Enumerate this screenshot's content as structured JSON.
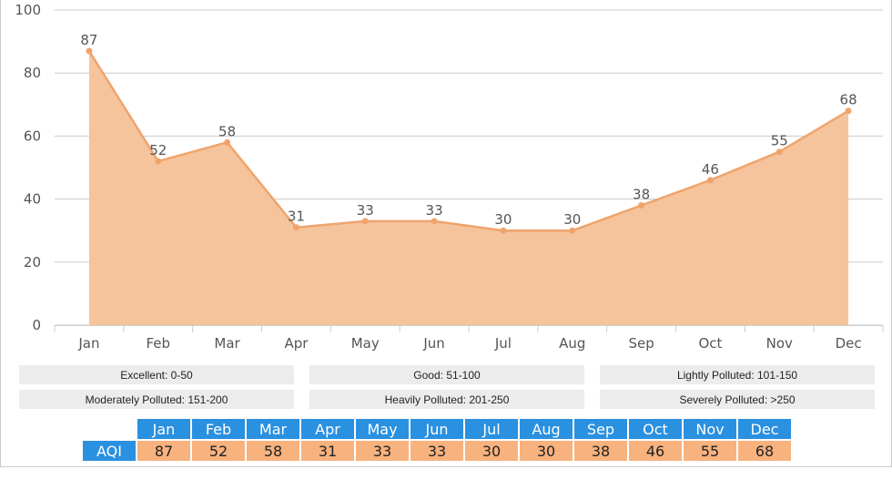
{
  "chart_data": {
    "type": "area",
    "categories": [
      "Jan",
      "Feb",
      "Mar",
      "Apr",
      "May",
      "Jun",
      "Jul",
      "Aug",
      "Sep",
      "Oct",
      "Nov",
      "Dec"
    ],
    "values": [
      87,
      52,
      58,
      31,
      33,
      33,
      30,
      30,
      38,
      46,
      55,
      68
    ],
    "yticks": [
      0,
      20,
      40,
      60,
      80,
      100
    ],
    "ylim": [
      0,
      100
    ],
    "grid": true,
    "colors": {
      "fill": "#f5c49c",
      "line": "#efa46c",
      "point": "#efa46c",
      "grid": "#cccccc",
      "text": "#555555"
    }
  },
  "legend": [
    "Excellent: 0-50",
    "Good: 51-100",
    "Lightly Polluted: 101-150",
    "Moderately Polluted: 151-200",
    "Heavily Polluted: 201-250",
    "Severely Polluted: >250"
  ],
  "table": {
    "row_label": "AQI",
    "months": [
      "Jan",
      "Feb",
      "Mar",
      "Apr",
      "May",
      "Jun",
      "Jul",
      "Aug",
      "Sep",
      "Oct",
      "Nov",
      "Dec"
    ],
    "values": [
      "87",
      "52",
      "58",
      "31",
      "33",
      "33",
      "30",
      "30",
      "38",
      "46",
      "55",
      "68"
    ],
    "colors": {
      "header": "#2a90e0",
      "value": "#f7b27e"
    }
  }
}
